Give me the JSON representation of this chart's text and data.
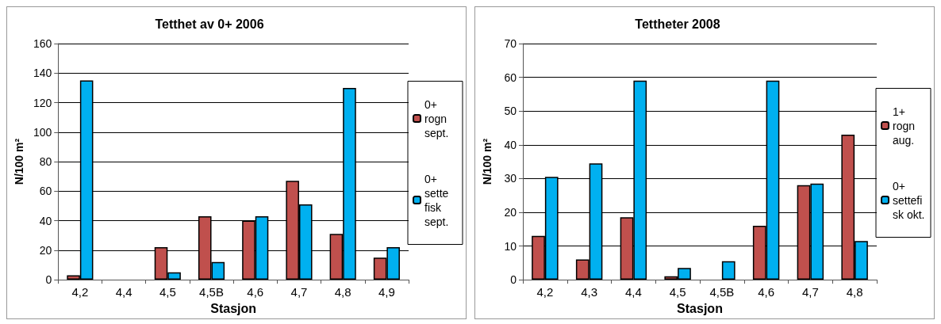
{
  "chart_data": [
    {
      "type": "bar",
      "title": "Tetthet av 0+ 2006",
      "xlabel": "Stasjon",
      "ylabel": "N/100 m²",
      "categories": [
        "4,2",
        "4,4",
        "4,5",
        "4,5B",
        "4,6",
        "4,7",
        "4,8",
        "4,9"
      ],
      "series": [
        {
          "name": "0+ rogn sept.",
          "color": "#c0504d",
          "values": [
            3,
            null,
            22,
            43,
            40,
            67,
            31,
            15
          ]
        },
        {
          "name": "0+ sette fisk sept.",
          "color": "#00b0f0",
          "values": [
            135,
            null,
            5,
            12,
            43,
            51,
            130,
            22
          ]
        }
      ],
      "ylim": [
        0,
        160
      ],
      "yticks": [
        0,
        20,
        40,
        60,
        80,
        100,
        120,
        140,
        160
      ],
      "grid": "y",
      "legend": "right"
    },
    {
      "type": "bar",
      "title": "Tettheter 2008",
      "xlabel": "Stasjon",
      "ylabel": "N/100 m²",
      "categories": [
        "4,2",
        "4,3",
        "4,4",
        "4,5",
        "4,5B",
        "4,6",
        "4,7",
        "4,8"
      ],
      "series": [
        {
          "name": "1+ rogn aug.",
          "color": "#c0504d",
          "values": [
            13,
            6,
            18.5,
            1,
            null,
            16,
            28,
            43
          ]
        },
        {
          "name": "0+ settefisk okt.",
          "color": "#00b0f0",
          "values": [
            30.5,
            34.5,
            59,
            3.5,
            5.5,
            59,
            28.5,
            11.5
          ]
        }
      ],
      "ylim": [
        0,
        70
      ],
      "yticks": [
        0,
        10,
        20,
        30,
        40,
        50,
        60,
        70
      ],
      "grid": "y",
      "legend": "right"
    }
  ]
}
